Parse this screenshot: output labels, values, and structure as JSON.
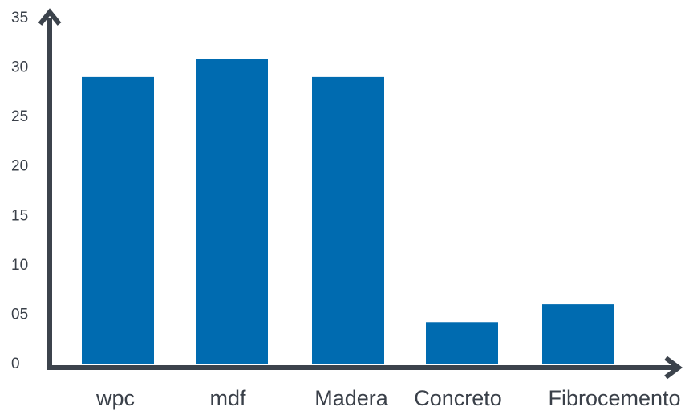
{
  "chart_data": {
    "type": "bar",
    "categories": [
      "wpc",
      "mdf",
      "Madera",
      "Concreto",
      "Fibrocemento"
    ],
    "values": [
      29,
      30.8,
      29,
      4.2,
      6
    ],
    "ylim": [
      0,
      35
    ],
    "yticks": [
      0,
      5,
      10,
      15,
      20,
      25,
      30,
      35
    ],
    "ytick_labels": [
      "0",
      "05",
      "10",
      "15",
      "20",
      "25",
      "30",
      "35"
    ],
    "title": "",
    "xlabel": "",
    "ylabel": "",
    "grid": false,
    "legend": "none",
    "colors": {
      "bar": "#006bb0",
      "axis": "#3c434c",
      "text": "#3a4049"
    }
  }
}
